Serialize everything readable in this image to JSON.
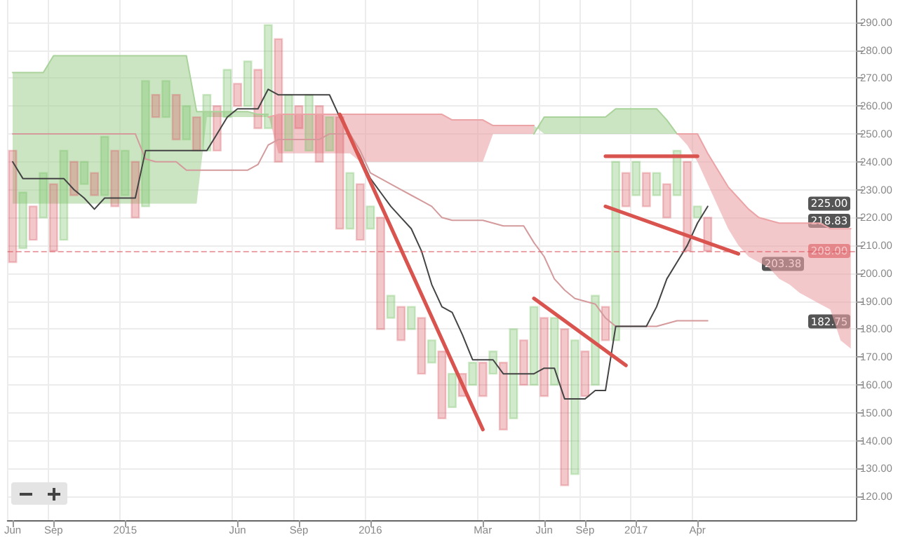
{
  "chart_data": {
    "type": "bar",
    "categories": [
      "Jun",
      null,
      null,
      null,
      "Sep",
      null,
      null,
      null,
      null,
      null,
      null,
      "2015",
      null,
      null,
      null,
      null,
      null,
      null,
      null,
      null,
      null,
      null,
      "Jun",
      null,
      null,
      null,
      null,
      null,
      "Sep",
      null,
      null,
      null,
      null,
      null,
      null,
      "2016",
      null,
      null,
      null,
      null,
      null,
      null,
      null,
      null,
      null,
      null,
      "Mar",
      null,
      null,
      null,
      null,
      null,
      "Jun",
      null,
      null,
      null,
      "Sep",
      null,
      null,
      null,
      null,
      "2017",
      null,
      null,
      null,
      null,
      null,
      "Apr",
      null,
      null,
      null,
      null,
      null,
      null,
      null,
      null,
      null,
      null,
      null,
      null,
      null,
      null,
      null
    ],
    "ylim": [
      111.5,
      298
    ],
    "yticks": [
      {
        "value": 120,
        "label": "120.00"
      },
      {
        "value": 130,
        "label": "130.00"
      },
      {
        "value": 140,
        "label": "140.00"
      },
      {
        "value": 150,
        "label": "150.00"
      },
      {
        "value": 160,
        "label": "160.00"
      },
      {
        "value": 170,
        "label": "170.00"
      },
      {
        "value": 180,
        "label": "180.00"
      },
      {
        "value": 190,
        "label": "190.00"
      },
      {
        "value": 200,
        "label": "200.00"
      },
      {
        "value": 210,
        "label": "210.00"
      },
      {
        "value": 220,
        "label": "220.00"
      },
      {
        "value": 230,
        "label": "230.00"
      },
      {
        "value": 240,
        "label": "240.00"
      },
      {
        "value": 250,
        "label": "250.00"
      },
      {
        "value": 260,
        "label": "260.00"
      },
      {
        "value": 270,
        "label": "270.00"
      },
      {
        "value": 280,
        "label": "280.00"
      },
      {
        "value": 290,
        "label": "290.00"
      }
    ],
    "grid": true,
    "series": [
      {
        "type": "line",
        "color": "#a9d39a",
        "upper": [
          272,
          272,
          272,
          272,
          278,
          278,
          278,
          278,
          278,
          278,
          278,
          278,
          278,
          278,
          278,
          278,
          278,
          278,
          258,
          258,
          258,
          258,
          258,
          258,
          257,
          257,
          null,
          null,
          null,
          null,
          null,
          null,
          null,
          null,
          null,
          null,
          null,
          null,
          null,
          null,
          null,
          null,
          null,
          null,
          null,
          null,
          null,
          null,
          null,
          null,
          null,
          250,
          256,
          256,
          256,
          256,
          256,
          256,
          256,
          259,
          259,
          259,
          259,
          259,
          255,
          250,
          null,
          null,
          null,
          null,
          null,
          null,
          null,
          null,
          null,
          null,
          null,
          null,
          null,
          null,
          null,
          null,
          null
        ],
        "values": [
          272,
          272,
          272,
          272,
          278,
          278,
          278,
          278,
          278,
          278,
          278,
          278,
          278,
          278,
          278,
          278,
          278,
          278,
          258,
          258,
          258,
          258,
          258,
          258,
          257,
          257,
          null,
          null,
          null,
          null,
          null,
          null,
          null,
          null,
          null,
          null,
          null,
          null,
          null,
          null,
          null,
          null,
          null,
          null,
          null,
          null,
          null,
          null,
          null,
          null,
          null,
          250,
          256,
          256,
          256,
          256,
          256,
          256,
          256,
          259,
          259,
          259,
          259,
          259,
          255,
          250,
          null,
          null,
          null,
          null,
          null,
          null,
          null,
          null,
          null,
          null,
          null,
          null,
          null,
          null,
          null,
          null,
          null
        ],
        "lower": [
          225,
          225,
          225,
          225,
          225,
          225,
          225,
          225,
          225,
          225,
          225,
          225,
          225,
          225,
          225,
          225,
          225,
          225,
          225,
          256,
          256,
          256,
          256,
          256,
          256,
          256,
          null,
          null,
          null,
          null,
          null,
          null,
          null,
          null,
          null,
          null,
          null,
          null,
          null,
          null,
          null,
          null,
          null,
          null,
          null,
          null,
          null,
          null,
          null,
          null,
          null,
          253,
          250,
          250,
          250,
          250,
          250,
          250,
          250,
          250,
          250,
          250,
          250,
          250,
          250,
          250,
          null,
          null,
          null,
          null,
          null,
          null,
          null,
          null,
          null,
          null,
          null,
          null,
          null,
          null,
          null,
          null,
          null
        ]
      },
      {
        "type": "line",
        "color": "#eba3a6",
        "values": [
          null,
          null,
          null,
          null,
          null,
          null,
          null,
          null,
          null,
          null,
          null,
          null,
          null,
          null,
          null,
          null,
          null,
          null,
          null,
          null,
          null,
          null,
          null,
          null,
          null,
          256,
          257,
          257,
          257,
          257,
          257,
          257,
          257,
          257,
          257,
          257,
          257,
          257,
          257,
          257,
          257,
          257,
          257,
          255,
          255,
          255,
          255,
          253,
          253,
          253,
          253,
          253,
          null,
          null,
          null,
          null,
          null,
          null,
          null,
          null,
          null,
          null,
          null,
          null,
          null,
          250,
          250,
          250,
          243,
          237,
          231,
          227,
          223,
          220,
          219,
          218,
          218,
          218,
          218,
          218,
          216,
          216,
          216
        ],
        "lower": [
          null,
          null,
          null,
          null,
          null,
          null,
          null,
          null,
          null,
          null,
          null,
          null,
          null,
          null,
          null,
          null,
          null,
          null,
          null,
          null,
          null,
          null,
          null,
          null,
          null,
          257,
          243,
          243,
          243,
          243,
          243,
          243,
          243,
          243,
          240,
          240,
          240,
          240,
          240,
          240,
          240,
          240,
          240,
          240,
          240,
          240,
          240,
          250,
          250,
          250,
          250,
          250,
          null,
          null,
          null,
          null,
          null,
          null,
          null,
          null,
          null,
          null,
          null,
          null,
          null,
          250,
          246,
          240,
          232,
          224,
          216,
          210,
          206,
          204,
          202,
          198,
          196,
          193,
          191,
          189,
          187,
          176,
          173
        ],
        "upper": [
          null,
          null,
          null,
          null,
          null,
          null,
          null,
          null,
          null,
          null,
          null,
          null,
          null,
          null,
          null,
          null,
          null,
          null,
          null,
          null,
          null,
          null,
          null,
          null,
          null,
          256,
          257,
          257,
          257,
          257,
          257,
          257,
          257,
          257,
          257,
          257,
          257,
          257,
          257,
          257,
          257,
          257,
          257,
          255,
          255,
          255,
          255,
          253,
          253,
          253,
          253,
          253,
          null,
          null,
          null,
          null,
          null,
          null,
          null,
          null,
          null,
          null,
          null,
          null,
          null,
          250,
          250,
          250,
          243,
          237,
          231,
          227,
          223,
          220,
          219,
          218,
          218,
          218,
          218,
          218,
          216,
          216,
          216
        ]
      },
      {
        "type": "line",
        "color": "#d49a9c",
        "values": [
          250,
          250,
          250,
          250,
          250,
          250,
          250,
          250,
          250,
          250,
          250,
          250,
          250,
          241,
          240,
          240,
          240,
          237,
          237,
          237,
          237,
          237,
          237,
          237,
          239,
          246,
          248,
          248,
          248,
          248,
          248,
          250,
          250,
          250,
          244,
          236,
          234,
          232,
          230,
          228,
          226,
          224,
          220,
          219,
          219,
          219,
          219,
          218,
          217,
          217,
          217,
          211,
          206,
          198,
          194,
          191,
          190,
          189,
          184,
          181,
          181,
          181,
          181,
          181,
          182,
          183,
          183,
          183,
          183,
          null,
          null,
          null,
          null,
          null,
          null,
          null,
          null,
          null,
          null,
          null,
          null,
          null,
          null
        ]
      },
      {
        "type": "line",
        "color": "#444444",
        "values": [
          240,
          234,
          234,
          234,
          234,
          234,
          230,
          227,
          223,
          227,
          227,
          227,
          227,
          244,
          244,
          244,
          244,
          244,
          244,
          244,
          250,
          256,
          259,
          259,
          259,
          266,
          264,
          264,
          264,
          264,
          264,
          264,
          256,
          249,
          242,
          234,
          229,
          224,
          220,
          216,
          208,
          196,
          188,
          186,
          178,
          169,
          169,
          169,
          164,
          164,
          164,
          164,
          166,
          166,
          155,
          155,
          155,
          158,
          158,
          181,
          181,
          181,
          181,
          188,
          198,
          204,
          210,
          218,
          224,
          null,
          null,
          null,
          null,
          null,
          null,
          null,
          null,
          null,
          null,
          null,
          null,
          null,
          null
        ]
      },
      {
        "base": [
          204,
          209,
          212,
          220,
          208,
          212,
          228,
          232,
          228,
          228,
          224,
          228,
          220,
          224,
          256,
          256,
          248,
          248,
          244,
          244,
          244,
          256,
          260,
          260,
          252,
          252,
          240,
          244,
          252,
          244,
          240,
          244,
          216,
          216,
          212,
          216,
          180,
          184,
          176,
          180,
          164,
          168,
          148,
          152,
          156,
          160,
          156,
          164,
          144,
          148,
          160,
          160,
          156,
          160,
          124,
          128,
          156,
          160,
          176,
          176,
          224,
          228,
          224,
          228,
          220,
          228,
          208,
          220,
          208,
          null,
          null,
          null,
          null,
          null,
          null,
          null,
          null,
          null,
          null,
          null,
          null,
          null,
          null
        ],
        "values": [
          40,
          20,
          12,
          16,
          24,
          32,
          12,
          8,
          8,
          21,
          20,
          16,
          20,
          45,
          8,
          13,
          16,
          12,
          12,
          20,
          16,
          17,
          8,
          16,
          21,
          37,
          44,
          20,
          8,
          20,
          20,
          12,
          40,
          20,
          20,
          8,
          40,
          8,
          12,
          8,
          20,
          8,
          24,
          12,
          8,
          8,
          12,
          8,
          24,
          32,
          16,
          28,
          28,
          24,
          56,
          48,
          16,
          32,
          12,
          64,
          12,
          12,
          12,
          8,
          12,
          16,
          32,
          4,
          12,
          null,
          null,
          null,
          null,
          null,
          null,
          null,
          null,
          null,
          null,
          null,
          null,
          null,
          null
        ],
        "colors": [
          "#d9606a",
          "#7cc46a",
          "#d9606a",
          "#7cc46a",
          "#d9606a",
          "#7cc46a",
          "#d9606a",
          "#7cc46a",
          "#d9606a",
          "#7cc46a",
          "#d9606a",
          "#7cc46a",
          "#d9606a",
          "#7cc46a",
          "#d9606a",
          "#7cc46a",
          "#d9606a",
          "#7cc46a",
          "#d9606a",
          "#7cc46a",
          "#d9606a",
          "#7cc46a",
          "#d9606a",
          "#7cc46a",
          "#d9606a",
          "#7cc46a",
          "#d9606a",
          "#7cc46a",
          "#d9606a",
          "#7cc46a",
          "#d9606a",
          "#7cc46a",
          "#d9606a",
          "#7cc46a",
          "#d9606a",
          "#7cc46a",
          "#d9606a",
          "#7cc46a",
          "#d9606a",
          "#7cc46a",
          "#d9606a",
          "#7cc46a",
          "#d9606a",
          "#7cc46a",
          "#d9606a",
          "#7cc46a",
          "#d9606a",
          "#7cc46a",
          "#d9606a",
          "#7cc46a",
          "#d9606a",
          "#7cc46a",
          "#d9606a",
          "#7cc46a",
          "#d9606a",
          "#7cc46a",
          "#d9606a",
          "#7cc46a",
          "#d9606a",
          "#7cc46a",
          "#d9606a",
          "#7cc46a",
          "#d9606a",
          "#7cc46a",
          "#d9606a",
          "#7cc46a",
          "#d9606a",
          "#7cc46a",
          "#d9606a",
          null,
          null,
          null,
          null,
          null,
          null,
          null,
          null,
          null,
          null,
          null,
          null,
          null,
          null
        ]
      },
      {
        "type": "line",
        "color": "#d9534f",
        "values": [
          null,
          null,
          null,
          null,
          null,
          null,
          null,
          null,
          null,
          null,
          null,
          null,
          null,
          null,
          null,
          null,
          null,
          null,
          null,
          null,
          null,
          null,
          null,
          null,
          null,
          null,
          null,
          null,
          null,
          null,
          null,
          null,
          257,
          null,
          null,
          null,
          null,
          null,
          null,
          null,
          null,
          null,
          null,
          null,
          null,
          null,
          144,
          null,
          null,
          null,
          null,
          null,
          null,
          null,
          null,
          null,
          null,
          null,
          null,
          null,
          null,
          null,
          null,
          null,
          null,
          null,
          null,
          null,
          null,
          null,
          null,
          null,
          null,
          null,
          null,
          null,
          null,
          null,
          null,
          null,
          null,
          null,
          null
        ]
      },
      {
        "type": "line",
        "color": "#d9534f",
        "values": [
          null,
          null,
          null,
          null,
          null,
          null,
          null,
          null,
          null,
          null,
          null,
          null,
          null,
          null,
          null,
          null,
          null,
          null,
          null,
          null,
          null,
          null,
          null,
          null,
          null,
          null,
          null,
          null,
          null,
          null,
          null,
          null,
          null,
          null,
          null,
          null,
          null,
          null,
          null,
          null,
          null,
          null,
          null,
          null,
          null,
          null,
          null,
          null,
          null,
          null,
          null,
          191,
          null,
          null,
          null,
          null,
          null,
          null,
          null,
          null,
          167,
          null,
          null,
          null,
          null,
          null,
          null,
          null,
          null,
          null,
          null,
          null,
          null,
          null,
          null,
          null,
          null,
          null,
          null,
          null,
          null,
          null,
          null
        ]
      },
      {
        "type": "line",
        "color": "#d9534f",
        "values": [
          null,
          null,
          null,
          null,
          null,
          null,
          null,
          null,
          null,
          null,
          null,
          null,
          null,
          null,
          null,
          null,
          null,
          null,
          null,
          null,
          null,
          null,
          null,
          null,
          null,
          null,
          null,
          null,
          null,
          null,
          null,
          null,
          null,
          null,
          null,
          null,
          null,
          null,
          null,
          null,
          null,
          null,
          null,
          null,
          null,
          null,
          null,
          null,
          null,
          null,
          null,
          null,
          null,
          null,
          null,
          null,
          null,
          null,
          242,
          null,
          null,
          null,
          null,
          null,
          null,
          null,
          null,
          242,
          null,
          null,
          null,
          null,
          null,
          null,
          null,
          null,
          null,
          null,
          null,
          null,
          null,
          null,
          null
        ]
      },
      {
        "type": "line",
        "color": "#d9534f",
        "values": [
          null,
          null,
          null,
          null,
          null,
          null,
          null,
          null,
          null,
          null,
          null,
          null,
          null,
          null,
          null,
          null,
          null,
          null,
          null,
          null,
          null,
          null,
          null,
          null,
          null,
          null,
          null,
          null,
          null,
          null,
          null,
          null,
          null,
          null,
          null,
          null,
          null,
          null,
          null,
          null,
          null,
          null,
          null,
          null,
          null,
          null,
          null,
          null,
          null,
          null,
          null,
          null,
          null,
          null,
          null,
          null,
          null,
          null,
          224,
          null,
          null,
          null,
          null,
          null,
          null,
          null,
          null,
          null,
          null,
          null,
          null,
          207,
          null,
          null,
          null,
          null,
          null,
          null,
          null,
          null,
          null,
          null,
          null
        ]
      }
    ],
    "ref_lines": [
      {
        "axis": "y",
        "value": 208,
        "label": "208.00",
        "color": "#dd5a60",
        "line_style": "dashed"
      }
    ],
    "annotations": [
      {
        "text": "225.00",
        "y": 225
      },
      {
        "text": "218.83",
        "y": 218.83
      },
      {
        "text": "203.38",
        "y": 203.38
      },
      {
        "text": "182.75",
        "y": 182.75
      }
    ]
  }
}
